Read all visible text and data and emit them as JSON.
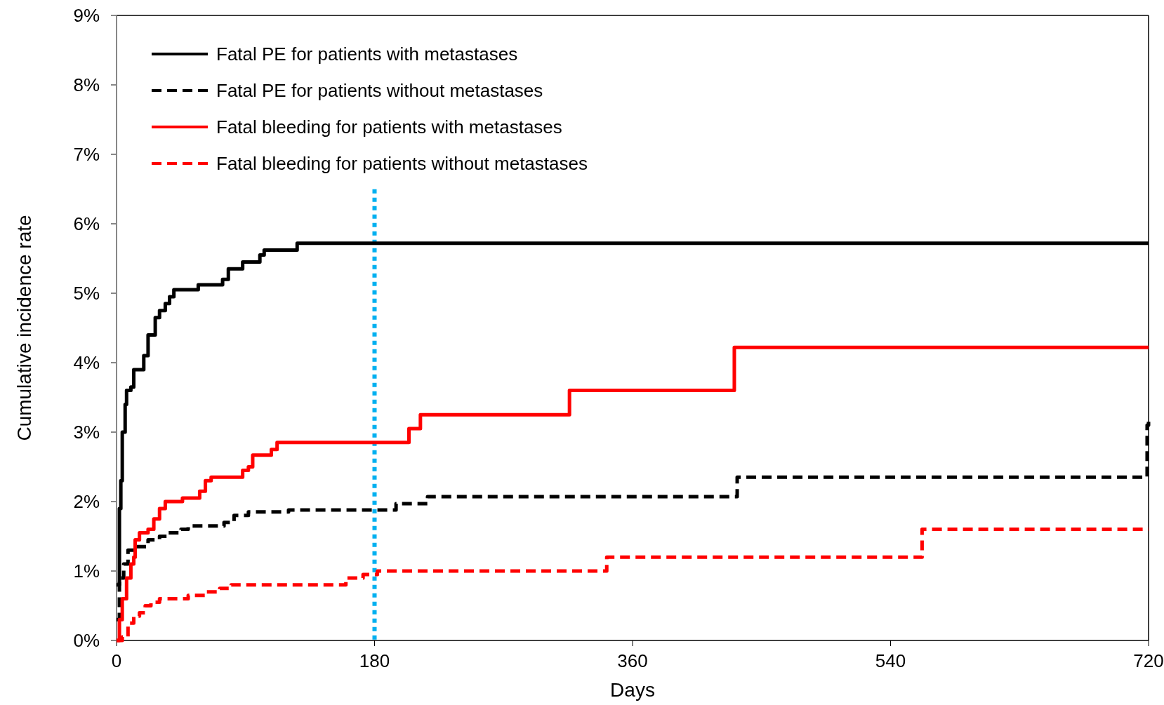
{
  "chart_data": {
    "type": "step",
    "xlabel": "Days",
    "ylabel": "Cumulative incidence rate",
    "xlim": [
      0,
      720
    ],
    "xticks": [
      0,
      180,
      360,
      540,
      720
    ],
    "ylim": [
      0,
      9
    ],
    "yticks": [
      {
        "value": 0,
        "label": "0%"
      },
      {
        "value": 1,
        "label": "1%"
      },
      {
        "value": 2,
        "label": "2%"
      },
      {
        "value": 3,
        "label": "3%"
      },
      {
        "value": 4,
        "label": "4%"
      },
      {
        "value": 5,
        "label": "5%"
      },
      {
        "value": 6,
        "label": "6%"
      },
      {
        "value": 7,
        "label": "7%"
      },
      {
        "value": 8,
        "label": "8%"
      },
      {
        "value": 9,
        "label": "9%"
      }
    ],
    "legend": "top left",
    "grid": false,
    "marker": "none",
    "ref_lines": [
      {
        "axis": "x",
        "value": 180,
        "color": "#00b0f0",
        "line_style": "dotted"
      }
    ],
    "series": [
      {
        "name": "Fatal PE for patients with metastases",
        "color": "#000000",
        "line_style": "solid",
        "x": [
          0,
          2,
          3,
          4,
          6,
          7,
          10,
          12,
          18,
          19,
          22,
          25,
          27,
          30,
          34,
          37,
          40,
          56,
          57,
          70,
          74,
          78,
          85,
          88,
          98,
          100,
          103,
          124,
          126,
          720
        ],
        "values": [
          0.8,
          1.9,
          2.3,
          3.0,
          3.4,
          3.6,
          3.65,
          3.9,
          3.9,
          4.1,
          4.4,
          4.4,
          4.65,
          4.75,
          4.85,
          4.95,
          5.05,
          5.05,
          5.12,
          5.12,
          5.2,
          5.35,
          5.35,
          5.45,
          5.45,
          5.55,
          5.62,
          5.62,
          5.72,
          5.72
        ]
      },
      {
        "name": "Fatal PE for patients without metastases",
        "color": "#000000",
        "line_style": "dashed",
        "x": [
          0,
          2,
          5,
          8,
          12,
          20,
          22,
          30,
          36,
          45,
          50,
          75,
          82,
          92,
          120,
          190,
          195,
          215,
          217,
          432,
          433,
          718,
          719,
          720
        ],
        "values": [
          0.3,
          0.9,
          1.1,
          1.3,
          1.35,
          1.35,
          1.45,
          1.5,
          1.55,
          1.6,
          1.65,
          1.7,
          1.8,
          1.85,
          1.88,
          1.88,
          1.97,
          1.97,
          2.07,
          2.07,
          2.35,
          2.35,
          3.1,
          3.15
        ]
      },
      {
        "name": "Fatal bleeding for patients with metastases",
        "color": "#ff0000",
        "line_style": "solid",
        "x": [
          0,
          2,
          4,
          7,
          10,
          12,
          13,
          16,
          22,
          26,
          30,
          34,
          44,
          46,
          58,
          62,
          66,
          85,
          88,
          92,
          95,
          106,
          108,
          112,
          202,
          204,
          210,
          212,
          315,
          316,
          430,
          431,
          720
        ],
        "values": [
          0,
          0.3,
          0.6,
          0.9,
          1.1,
          1.2,
          1.45,
          1.55,
          1.6,
          1.75,
          1.9,
          2.0,
          2.0,
          2.05,
          2.15,
          2.3,
          2.35,
          2.35,
          2.45,
          2.5,
          2.67,
          2.67,
          2.75,
          2.85,
          2.85,
          3.05,
          3.05,
          3.25,
          3.25,
          3.6,
          3.6,
          4.22,
          4.22
        ]
      },
      {
        "name": "Fatal bleeding for patients without metastases",
        "color": "#ff0000",
        "line_style": "dashed",
        "x": [
          0,
          4,
          8,
          12,
          16,
          20,
          24,
          30,
          50,
          62,
          72,
          80,
          158,
          160,
          172,
          182,
          341,
          342,
          561,
          562,
          720
        ],
        "values": [
          0,
          0.05,
          0.25,
          0.35,
          0.4,
          0.5,
          0.55,
          0.6,
          0.65,
          0.7,
          0.75,
          0.8,
          0.8,
          0.9,
          0.95,
          1.0,
          1.0,
          1.2,
          1.2,
          1.6,
          1.6
        ]
      }
    ]
  }
}
